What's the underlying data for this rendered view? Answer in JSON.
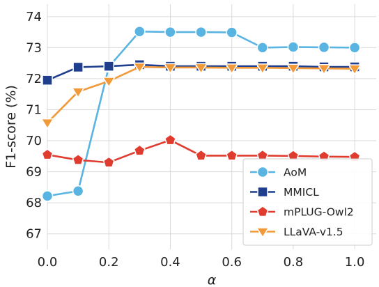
{
  "chart_data": {
    "type": "line",
    "xlabel": "α",
    "ylabel": "F1-score (%)",
    "xlim": [
      0.0,
      1.07
    ],
    "ylim": [
      66.5,
      74.4
    ],
    "x_ticks": [
      "0.0",
      "0.2",
      "0.4",
      "0.6",
      "0.8",
      "1.0"
    ],
    "y_ticks": [
      "67",
      "68",
      "69",
      "70",
      "71",
      "72",
      "73",
      "74"
    ],
    "grid": true,
    "legend_position": "bottom-right",
    "x": [
      0.0,
      0.1,
      0.2,
      0.3,
      0.4,
      0.5,
      0.6,
      0.7,
      0.8,
      0.9,
      1.0
    ],
    "series": [
      {
        "name": "AoM",
        "color": "#5ab4e2",
        "marker": "circle",
        "values": [
          68.22,
          68.38,
          72.38,
          73.52,
          73.5,
          73.5,
          73.49,
          73.0,
          73.02,
          73.01,
          73.0
        ]
      },
      {
        "name": "MMICL",
        "color": "#1f3f8e",
        "marker": "square",
        "values": [
          71.95,
          72.37,
          72.4,
          72.45,
          72.4,
          72.4,
          72.4,
          72.4,
          72.4,
          72.38,
          72.38
        ]
      },
      {
        "name": "mPLUG-Owl2",
        "color": "#e03b2f",
        "marker": "pentagon",
        "values": [
          69.55,
          69.38,
          69.3,
          69.68,
          70.02,
          69.52,
          69.52,
          69.52,
          69.51,
          69.49,
          69.48
        ]
      },
      {
        "name": "LLaVA-v1.5",
        "color": "#f29a3a",
        "marker": "triangle-down",
        "values": [
          70.58,
          71.58,
          71.92,
          72.38,
          72.36,
          72.36,
          72.35,
          72.35,
          72.34,
          72.33,
          72.32
        ]
      }
    ]
  }
}
